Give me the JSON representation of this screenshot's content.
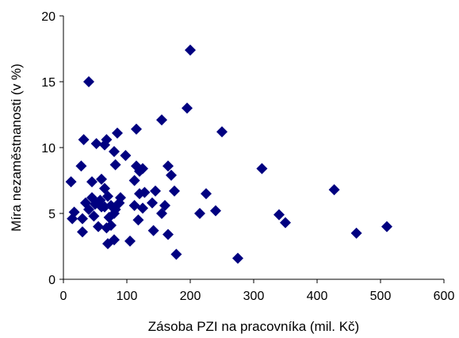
{
  "chart_data": {
    "type": "scatter",
    "title": "",
    "xlabel": "Zásoba PZI na pracovníka (mil. Kč)",
    "ylabel": "Míra nezaměstnanosti (v %)",
    "xlim": [
      0,
      600
    ],
    "ylim": [
      0,
      20
    ],
    "xticks": [
      "0",
      "100",
      "200",
      "300",
      "400",
      "500",
      "600"
    ],
    "yticks": [
      "0",
      "5",
      "10",
      "15",
      "20"
    ],
    "grid": false,
    "legend": "none",
    "marker": "diamond",
    "marker_color": "#000080",
    "points": [
      [
        40,
        15.0
      ],
      [
        200,
        17.4
      ],
      [
        195,
        13.0
      ],
      [
        155,
        12.1
      ],
      [
        250,
        11.2
      ],
      [
        115,
        11.4
      ],
      [
        85,
        11.1
      ],
      [
        32,
        10.6
      ],
      [
        68,
        10.6
      ],
      [
        52,
        10.3
      ],
      [
        65,
        10.2
      ],
      [
        80,
        9.7
      ],
      [
        98,
        9.4
      ],
      [
        82,
        8.7
      ],
      [
        115,
        8.6
      ],
      [
        120,
        8.2
      ],
      [
        125,
        8.4
      ],
      [
        165,
        8.6
      ],
      [
        28,
        8.6
      ],
      [
        313,
        8.4
      ],
      [
        170,
        7.9
      ],
      [
        12,
        7.4
      ],
      [
        45,
        7.4
      ],
      [
        60,
        7.6
      ],
      [
        112,
        7.5
      ],
      [
        65,
        6.9
      ],
      [
        427,
        6.8
      ],
      [
        175,
        6.7
      ],
      [
        128,
        6.6
      ],
      [
        145,
        6.7
      ],
      [
        225,
        6.5
      ],
      [
        120,
        6.5
      ],
      [
        70,
        6.3
      ],
      [
        45,
        6.2
      ],
      [
        90,
        6.2
      ],
      [
        35,
        5.8
      ],
      [
        58,
        6.0
      ],
      [
        50,
        5.7
      ],
      [
        60,
        5.5
      ],
      [
        75,
        5.6
      ],
      [
        88,
        5.8
      ],
      [
        112,
        5.6
      ],
      [
        140,
        5.8
      ],
      [
        160,
        5.6
      ],
      [
        40,
        5.3
      ],
      [
        65,
        5.5
      ],
      [
        82,
        5.3
      ],
      [
        125,
        5.4
      ],
      [
        155,
        5.0
      ],
      [
        215,
        5.0
      ],
      [
        240,
        5.2
      ],
      [
        17,
        5.1
      ],
      [
        14,
        4.6
      ],
      [
        30,
        4.6
      ],
      [
        48,
        4.8
      ],
      [
        72,
        4.7
      ],
      [
        80,
        5.0
      ],
      [
        118,
        4.5
      ],
      [
        340,
        4.9
      ],
      [
        350,
        4.3
      ],
      [
        55,
        4.0
      ],
      [
        75,
        4.1
      ],
      [
        68,
        3.9
      ],
      [
        510,
        4.0
      ],
      [
        30,
        3.6
      ],
      [
        142,
        3.7
      ],
      [
        462,
        3.5
      ],
      [
        165,
        3.4
      ],
      [
        80,
        3.0
      ],
      [
        70,
        2.7
      ],
      [
        105,
        2.9
      ],
      [
        178,
        1.9
      ],
      [
        275,
        1.6
      ]
    ]
  }
}
